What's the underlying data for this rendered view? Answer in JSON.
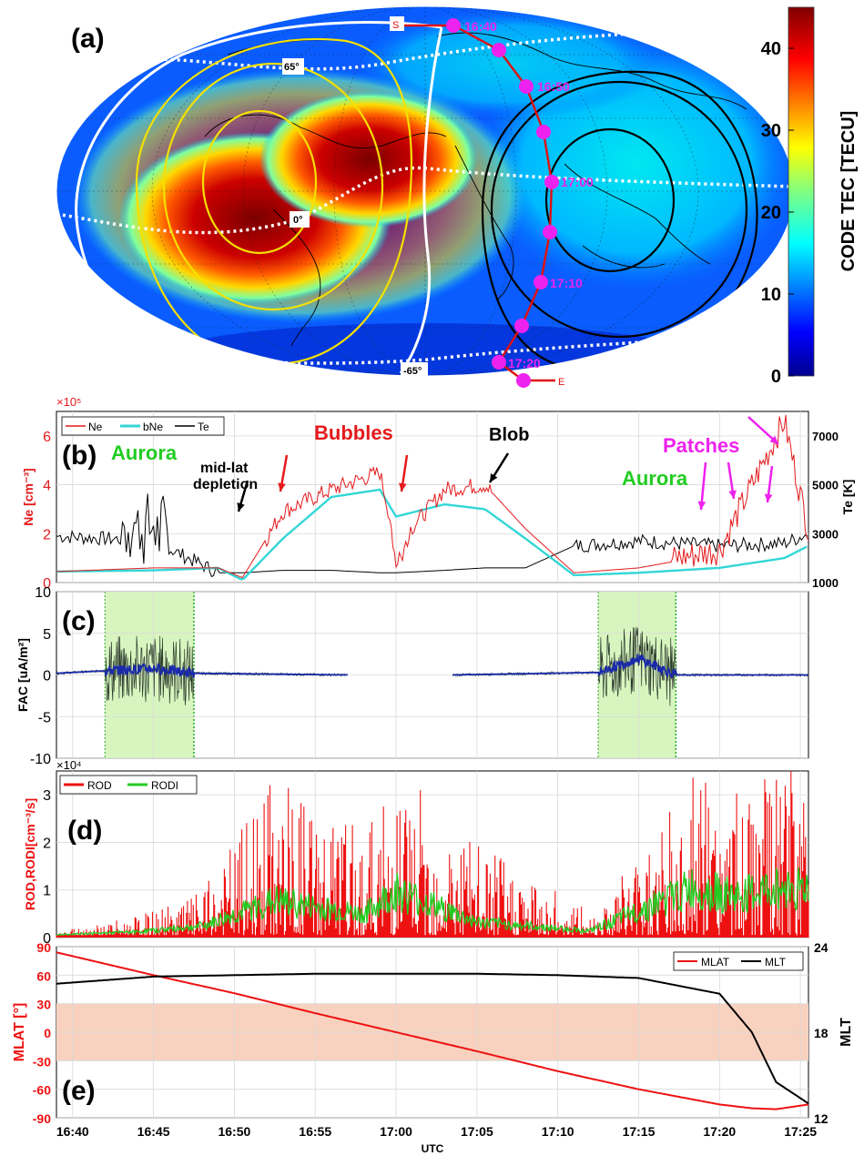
{
  "panel_a": {
    "label": "(a)",
    "colorbar": {
      "title": "CODE TEC [TECU]",
      "ticks": [
        0,
        10,
        20,
        30,
        40
      ],
      "max": 45
    },
    "map_labels": {
      "lat_n": "65°",
      "lat_eq": "0°",
      "lat_s": "-65°",
      "start": "S",
      "end": "E"
    },
    "track_times": [
      "16:40",
      "16:50",
      "17:00",
      "17:10",
      "17:20"
    ],
    "colors": {
      "track": "#e000e0",
      "track_line": "#e01010",
      "contour_yellow": "#f0e000",
      "contour_black": "#000000"
    }
  },
  "panel_b": {
    "label": "(b)",
    "ylabel_left": "Ne [cm⁻³]",
    "ylabel_right": "Te [K]",
    "exponent": "×10⁵",
    "legend": [
      "Ne",
      "bNe",
      "Te"
    ],
    "yticks_left": [
      0,
      2,
      4,
      6
    ],
    "yticks_right": [
      1000,
      3000,
      5000,
      7000
    ],
    "annotations": {
      "aurora1": "Aurora",
      "midlat": "mid-lat",
      "midlat2": "depletion",
      "bubbles": "Bubbles",
      "blob": "Blob",
      "aurora2": "Aurora",
      "patches": "Patches"
    },
    "colors": {
      "Ne": "#e41a1c",
      "bNe": "#33d6d6",
      "Te": "#000000",
      "aurora": "#22cc22",
      "patches": "#ee22ee"
    }
  },
  "panel_c": {
    "label": "(c)",
    "ylabel": "FAC [uA/m²]",
    "yticks": [
      -10,
      -5,
      0,
      5,
      10
    ],
    "aurora_shading": [
      [
        "16:42",
        "16:47.5"
      ],
      [
        "17:12.5",
        "17:17.3"
      ]
    ],
    "colors": {
      "shade": "#d8f5c0",
      "fac": "#1a2aaa"
    }
  },
  "panel_d": {
    "label": "(d)",
    "ylabel": "ROD,RODI[cm⁻³/s]",
    "exponent": "×10⁴",
    "legend": [
      "ROD",
      "RODI"
    ],
    "yticks": [
      0,
      1,
      2,
      3
    ],
    "colors": {
      "ROD": "#ee1111",
      "RODI": "#22cc22"
    }
  },
  "panel_e": {
    "label": "(e)",
    "ylabel_left": "MLAT [°]",
    "ylabel_right": "MLT",
    "legend": [
      "MLAT",
      "MLT"
    ],
    "yticks_left": [
      -90,
      -60,
      -30,
      0,
      30,
      60,
      90
    ],
    "yticks_right": [
      12,
      18,
      24
    ],
    "band": [
      -30,
      30
    ],
    "colors": {
      "MLAT": "#ee1111",
      "MLT": "#000000",
      "band": "#f8d2bf"
    }
  },
  "x_axis": {
    "label": "UTC",
    "ticks": [
      "16:40",
      "16:45",
      "16:50",
      "16:55",
      "17:00",
      "17:05",
      "17:10",
      "17:15",
      "17:20",
      "17:25"
    ]
  },
  "chart_data": [
    {
      "type": "heatmap",
      "panel": "(a)",
      "title": "",
      "colorbar_label": "CODE TEC [TECU]",
      "range": [
        0,
        45
      ],
      "track_labels": [
        "16:40",
        "16:50",
        "17:00",
        "17:10",
        "17:20"
      ]
    },
    {
      "type": "line",
      "panel": "(b)",
      "xlabel": "",
      "ylabel": "Ne [cm-3]",
      "ylim": [
        0,
        7
      ],
      "y2lim": [
        1000,
        8000
      ],
      "x": [
        "16:39",
        "16:45",
        "16:49",
        "16:50.5",
        "16:53",
        "16:56",
        "16:59",
        "17:00",
        "17:03",
        "17:05.5",
        "17:08",
        "17:11",
        "17:15",
        "17:20",
        "17:24",
        "17:25.5"
      ],
      "series": [
        {
          "name": "Ne",
          "values": [
            0.45,
            0.6,
            0.6,
            0.2,
            2.9,
            3.8,
            4.5,
            1.5,
            3.8,
            4.0,
            2.2,
            0.4,
            0.6,
            1.2,
            6.5,
            2.0
          ]
        },
        {
          "name": "bNe",
          "values": [
            0.45,
            0.5,
            0.6,
            0.1,
            1.8,
            3.5,
            3.8,
            2.7,
            3.2,
            3.0,
            1.8,
            0.3,
            0.4,
            0.6,
            1.0,
            1.5
          ]
        },
        {
          "name": "Te",
          "values": [
            2900,
            2700,
            1400,
            1400,
            1500,
            1500,
            1400,
            1400,
            1500,
            1600,
            1600,
            2500,
            2700,
            2500,
            2600,
            3000
          ]
        }
      ]
    },
    {
      "type": "line",
      "panel": "(c)",
      "ylabel": "FAC [uA/m2]",
      "ylim": [
        -10,
        10
      ],
      "x": [
        "16:39",
        "16:42",
        "16:45",
        "16:47.5",
        "16:57",
        "17:03.5",
        "17:12.5",
        "17:15",
        "17:17.3",
        "17:25"
      ],
      "series": [
        {
          "name": "FAC",
          "values": [
            0.2,
            0.5,
            0.8,
            0.2,
            0.0,
            0.0,
            0.3,
            2.0,
            0.0,
            0.0
          ]
        }
      ]
    },
    {
      "type": "line",
      "panel": "(d)",
      "ylabel": "ROD,RODI[cm-3/s]",
      "ylim": [
        0,
        3.5
      ],
      "x": [
        "16:39",
        "16:44",
        "16:48",
        "16:52.5",
        "16:58",
        "17:00",
        "17:05",
        "17:12",
        "17:18.5",
        "17:21",
        "17:24"
      ],
      "series": [
        {
          "name": "ROD",
          "values": [
            0.1,
            0.4,
            0.9,
            3.5,
            2.2,
            3.5,
            2.0,
            0.5,
            3.5,
            3.0,
            3.5
          ]
        },
        {
          "name": "RODI",
          "values": [
            0.05,
            0.2,
            0.5,
            1.8,
            1.1,
            2.3,
            0.7,
            0.25,
            2.5,
            2.0,
            2.5
          ]
        }
      ]
    },
    {
      "type": "line",
      "panel": "(e)",
      "xlabel": "UTC",
      "ylabel": "MLAT [°]",
      "ylim": [
        -90,
        90
      ],
      "y2lim": [
        12,
        24
      ],
      "x": [
        "16:39",
        "16:45",
        "16:50",
        "16:55",
        "17:00",
        "17:05",
        "17:10",
        "17:15",
        "17:20",
        "17:22",
        "17:23.5",
        "17:25.5"
      ],
      "series": [
        {
          "name": "MLAT",
          "values": [
            84,
            60,
            41,
            20,
            0,
            -20,
            -41,
            -60,
            -76,
            -80,
            -81,
            -76
          ]
        },
        {
          "name": "MLT",
          "values": [
            21.4,
            21.9,
            22.0,
            22.1,
            22.1,
            22.1,
            22.0,
            21.8,
            20.7,
            18.0,
            14.5,
            13.0
          ]
        }
      ]
    }
  ]
}
